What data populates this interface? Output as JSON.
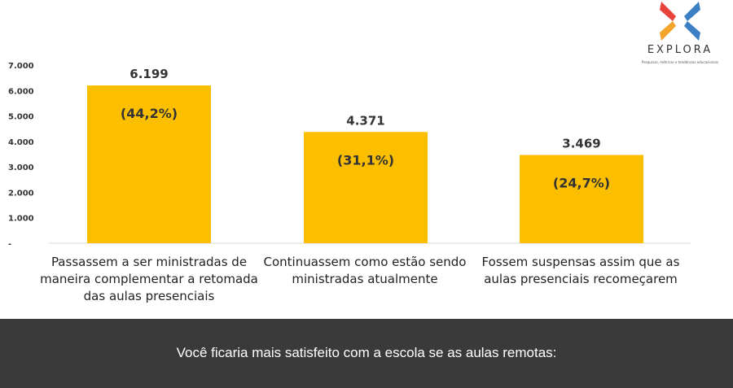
{
  "brand": {
    "name": "EXPLORA",
    "tagline": "Pesquisas, métricas e tendências educacionais",
    "colors": {
      "red": "#e8443b",
      "orange": "#f3a42a",
      "blue": "#3d7fc4"
    }
  },
  "question": "Você ficaria mais satisfeito com a escola se as aulas remotas:",
  "chart_data": {
    "type": "bar",
    "title": "Você ficaria mais satisfeito com a escola se as aulas remotas:",
    "xlabel": "",
    "ylabel": "",
    "ylim": [
      0,
      7000
    ],
    "yticks": [
      0,
      1000,
      2000,
      3000,
      4000,
      5000,
      6000,
      7000
    ],
    "ytick_labels": [
      "-",
      "1.000",
      "2.000",
      "3.000",
      "4.000",
      "5.000",
      "6.000",
      "7.000"
    ],
    "grid": false,
    "bar_color": "#fcbf00",
    "categories": [
      "Passassem a ser ministradas de maneira complementar a retomada das aulas presenciais",
      "Continuassem como estão sendo ministradas atualmente",
      "Fossem suspensas assim que as aulas presenciais recomeçarem"
    ],
    "values": [
      6199,
      4371,
      3469
    ],
    "value_labels": [
      "6.199",
      "4.371",
      "3.469"
    ],
    "percent_labels": [
      "(44,2%)",
      "(31,1%)",
      "(24,7%)"
    ]
  }
}
